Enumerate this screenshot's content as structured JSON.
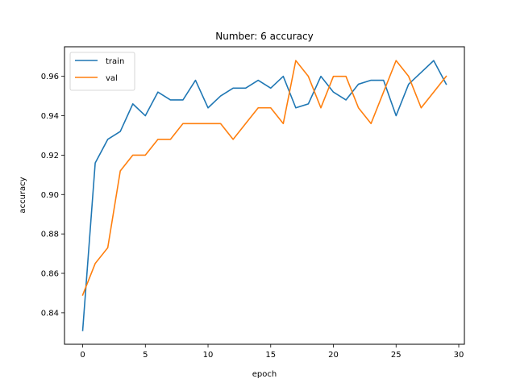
{
  "chart_data": {
    "type": "line",
    "title": "Number: 6 accuracy",
    "xlabel": "epoch",
    "ylabel": "accuracy",
    "xlim": [
      -1.45,
      30.45
    ],
    "ylim": [
      0.824,
      0.975
    ],
    "xticks": [
      0,
      5,
      10,
      15,
      20,
      25,
      30
    ],
    "xtick_labels": [
      "0",
      "5",
      "10",
      "15",
      "20",
      "25",
      "30"
    ],
    "yticks": [
      0.84,
      0.86,
      0.88,
      0.9,
      0.92,
      0.94,
      0.96
    ],
    "ytick_labels": [
      "0.84",
      "0.86",
      "0.88",
      "0.90",
      "0.92",
      "0.94",
      "0.96"
    ],
    "legend_position": "upper-left",
    "grid": false,
    "x": [
      0,
      1,
      2,
      3,
      4,
      5,
      6,
      7,
      8,
      9,
      10,
      11,
      12,
      13,
      14,
      15,
      16,
      17,
      18,
      19,
      20,
      21,
      22,
      23,
      24,
      25,
      26,
      27,
      28,
      29
    ],
    "series": [
      {
        "name": "train",
        "color": "#1f77b4",
        "values": [
          0.831,
          0.916,
          0.928,
          0.932,
          0.946,
          0.94,
          0.952,
          0.948,
          0.948,
          0.958,
          0.944,
          0.95,
          0.954,
          0.954,
          0.958,
          0.954,
          0.96,
          0.944,
          0.946,
          0.96,
          0.952,
          0.948,
          0.956,
          0.958,
          0.958,
          0.94,
          0.956,
          0.962,
          0.968,
          0.956
        ]
      },
      {
        "name": "val",
        "color": "#ff7f0e",
        "values": [
          0.849,
          0.865,
          0.873,
          0.912,
          0.92,
          0.92,
          0.928,
          0.928,
          0.936,
          0.936,
          0.936,
          0.936,
          0.928,
          0.936,
          0.944,
          0.944,
          0.936,
          0.968,
          0.96,
          0.944,
          0.96,
          0.96,
          0.944,
          0.936,
          0.952,
          0.968,
          0.96,
          0.944,
          0.952,
          0.96
        ]
      }
    ]
  }
}
